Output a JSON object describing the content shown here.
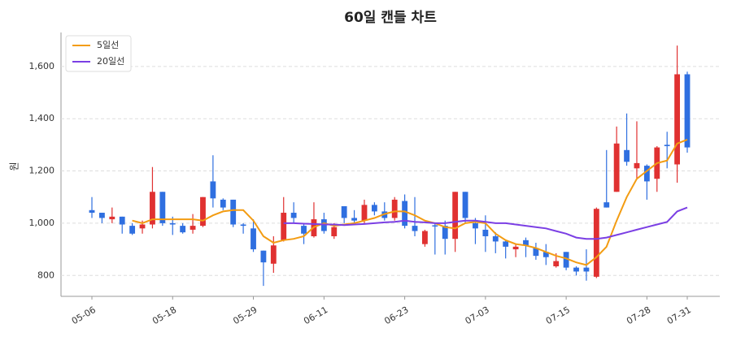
{
  "chart_data": {
    "type": "candlestick",
    "title": "60일 캔들 차트",
    "y_label": "원",
    "categories": [
      "05-06",
      null,
      null,
      null,
      null,
      null,
      null,
      null,
      "05-18",
      null,
      null,
      null,
      null,
      null,
      null,
      null,
      "05-29",
      null,
      null,
      null,
      null,
      null,
      null,
      "06-11",
      null,
      null,
      null,
      null,
      null,
      null,
      null,
      "06-23",
      null,
      null,
      null,
      null,
      null,
      null,
      null,
      "07-03",
      null,
      null,
      null,
      null,
      null,
      null,
      null,
      "07-15",
      null,
      null,
      null,
      null,
      null,
      null,
      null,
      "07-28",
      null,
      null,
      null,
      "07-31"
    ],
    "open": [
      1050,
      1040,
      1015,
      1025,
      990,
      980,
      995,
      1120,
      1000,
      990,
      975,
      990,
      1160,
      1090,
      1090,
      995,
      980,
      895,
      845,
      935,
      1040,
      990,
      950,
      1015,
      950,
      1065,
      1020,
      1010,
      1070,
      1045,
      1020,
      1085,
      990,
      920,
      992,
      990,
      940,
      1120,
      1000,
      975,
      950,
      930,
      900,
      935,
      905,
      890,
      835,
      890,
      830,
      830,
      795,
      1080,
      1120,
      1280,
      1210,
      1220,
      1170,
      1300,
      1225,
      1570
    ],
    "high": [
      1100,
      1040,
      1060,
      1025,
      1000,
      1010,
      1215,
      1120,
      1025,
      1000,
      1035,
      1100,
      1260,
      1095,
      1090,
      1000,
      1015,
      895,
      950,
      1100,
      1080,
      1000,
      1080,
      1040,
      1000,
      1065,
      1050,
      1090,
      1080,
      1080,
      1100,
      1110,
      1100,
      975,
      1000,
      1010,
      1120,
      1120,
      1020,
      1030,
      965,
      935,
      920,
      945,
      925,
      920,
      885,
      890,
      835,
      900,
      1060,
      1280,
      1370,
      1420,
      1390,
      1225,
      1295,
      1350,
      1680,
      1580
    ],
    "low": [
      1020,
      1000,
      1000,
      960,
      955,
      960,
      980,
      990,
      955,
      960,
      960,
      985,
      1060,
      1050,
      985,
      960,
      890,
      760,
      810,
      930,
      1000,
      920,
      945,
      960,
      940,
      1000,
      1000,
      1000,
      1030,
      1010,
      1010,
      980,
      950,
      910,
      880,
      880,
      890,
      1000,
      920,
      890,
      885,
      865,
      870,
      870,
      860,
      840,
      830,
      820,
      800,
      780,
      790,
      1060,
      1120,
      1220,
      1170,
      1090,
      1120,
      1210,
      1155,
      1270
    ],
    "close": [
      1040,
      1020,
      1025,
      995,
      960,
      995,
      1120,
      1000,
      995,
      965,
      990,
      1100,
      1095,
      1060,
      995,
      990,
      900,
      850,
      915,
      1040,
      1020,
      960,
      1015,
      970,
      985,
      1020,
      1010,
      1070,
      1045,
      1020,
      1090,
      990,
      970,
      970,
      988,
      940,
      1120,
      1020,
      980,
      950,
      930,
      910,
      910,
      915,
      875,
      870,
      855,
      830,
      815,
      815,
      1055,
      1060,
      1305,
      1235,
      1230,
      1160,
      1290,
      1295,
      1570,
      1290
    ],
    "up_color": "#e03131",
    "down_color": "#2f6fe0",
    "series": [
      {
        "name": "5일선",
        "color": "#f39c12",
        "values": [
          null,
          null,
          null,
          null,
          1010,
          1000,
          1015,
          1015,
          1015,
          1015,
          1015,
          1010,
          1030,
          1045,
          1050,
          1050,
          1010,
          950,
          925,
          935,
          940,
          950,
          985,
          1000,
          990,
          995,
          1000,
          1010,
          1020,
          1035,
          1045,
          1045,
          1030,
          1010,
          1000,
          985,
          980,
          1000,
          1005,
          1000,
          960,
          935,
          920,
          915,
          905,
          890,
          875,
          865,
          850,
          840,
          870,
          910,
          1010,
          1100,
          1170,
          1200,
          1230,
          1240,
          1305,
          1320
        ]
      },
      {
        "name": "20일선",
        "color": "#7b3fe4",
        "values": [
          null,
          null,
          null,
          null,
          null,
          null,
          null,
          null,
          null,
          null,
          null,
          null,
          null,
          null,
          null,
          null,
          null,
          null,
          null,
          1000,
          1000,
          998,
          997,
          995,
          995,
          993,
          995,
          997,
          1000,
          1003,
          1005,
          1010,
          1005,
          1003,
          1000,
          1000,
          1005,
          1010,
          1010,
          1005,
          1000,
          1000,
          995,
          990,
          985,
          980,
          970,
          960,
          945,
          940,
          940,
          945,
          955,
          965,
          975,
          985,
          995,
          1005,
          1045,
          1060
        ]
      }
    ],
    "ylim": [
      720,
      1730
    ],
    "yticks": [
      800,
      {
        "value": 1000,
        "label": "1,000"
      },
      {
        "value": 1200,
        "label": "1,200"
      },
      {
        "value": 1400,
        "label": "1,400"
      },
      {
        "value": 1600,
        "label": "1,600"
      }
    ],
    "grid": true,
    "legend": "upper-left"
  }
}
